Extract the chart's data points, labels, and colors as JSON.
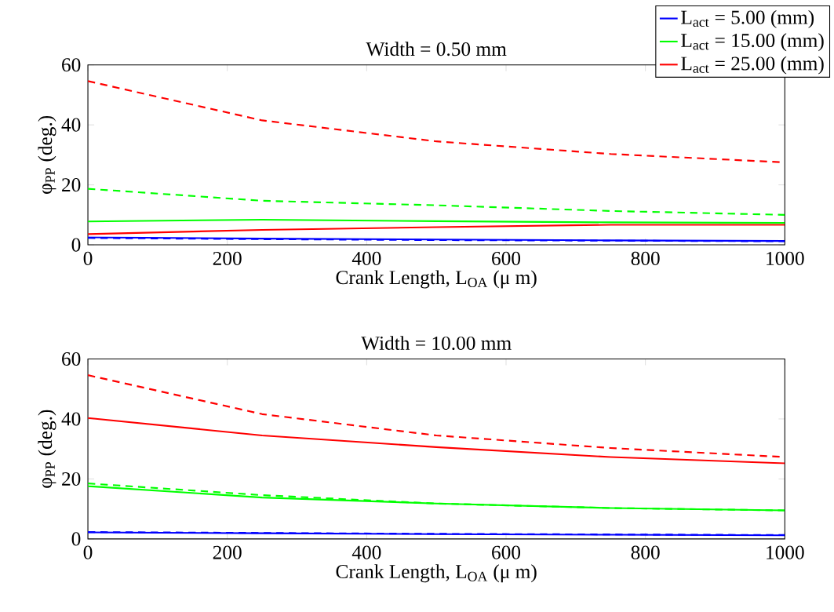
{
  "chart_data": [
    {
      "type": "line",
      "title": "Width = 0.50 mm",
      "xlabel": "Crank Length, L$_{OA}$ (μ m)",
      "ylabel": "φ$_{PP}$ (deg.)",
      "x": [
        0,
        250,
        500,
        750,
        1000
      ],
      "xlim": [
        0,
        1000
      ],
      "ylim": [
        0,
        60
      ],
      "xticks": [
        0,
        200,
        400,
        600,
        800,
        1000
      ],
      "yticks": [
        0,
        20,
        40,
        60
      ],
      "legend": "top right",
      "series": [
        {
          "name": "L$_{act}$ = 5.00 (mm)",
          "color": "#0000ff",
          "line_style": "solid",
          "values": [
            2.5,
            2.1,
            1.8,
            1.5,
            1.3
          ]
        },
        {
          "name": "L$_{act}$ = 15.00 (mm)",
          "color": "#00ff00",
          "line_style": "solid",
          "values": [
            7.8,
            8.4,
            7.9,
            7.5,
            7.3
          ]
        },
        {
          "name": "L$_{act}$ = 25.00 (mm)",
          "color": "#ff0000",
          "line_style": "solid",
          "values": [
            3.6,
            5.0,
            5.9,
            6.7,
            6.7
          ]
        },
        {
          "color": "#0000ff",
          "line_style": "dashed",
          "values": [
            2.3,
            1.9,
            1.6,
            1.4,
            1.2
          ]
        },
        {
          "color": "#00ff00",
          "line_style": "dashed",
          "values": [
            18.7,
            14.7,
            13.2,
            11.3,
            10.0
          ]
        },
        {
          "color": "#ff0000",
          "line_style": "dashed",
          "values": [
            54.6,
            41.5,
            34.5,
            30.3,
            27.5
          ]
        }
      ]
    },
    {
      "type": "line",
      "title": "Width = 10.00 mm",
      "xlabel": "Crank Length, L$_{OA}$ (μ m)",
      "ylabel": "φ$_{PP}$ (deg.)",
      "x": [
        0,
        250,
        500,
        750,
        1000
      ],
      "xlim": [
        0,
        1000
      ],
      "ylim": [
        0,
        60
      ],
      "xticks": [
        0,
        200,
        400,
        600,
        800,
        1000
      ],
      "yticks": [
        0,
        20,
        40,
        60
      ],
      "series": [
        {
          "color": "#0000ff",
          "line_style": "solid",
          "values": [
            2.2,
            1.9,
            1.6,
            1.4,
            1.2
          ]
        },
        {
          "color": "#00ff00",
          "line_style": "solid",
          "values": [
            17.6,
            13.8,
            11.8,
            10.3,
            9.5
          ]
        },
        {
          "color": "#ff0000",
          "line_style": "solid",
          "values": [
            40.3,
            34.5,
            30.6,
            27.3,
            25.2
          ]
        },
        {
          "color": "#0000ff",
          "line_style": "dashed",
          "values": [
            2.3,
            2.0,
            1.7,
            1.5,
            1.3
          ]
        },
        {
          "color": "#00ff00",
          "line_style": "dashed",
          "values": [
            18.5,
            14.6,
            11.8,
            10.3,
            9.5
          ]
        },
        {
          "color": "#ff0000",
          "line_style": "dashed",
          "values": [
            54.6,
            41.6,
            34.5,
            30.3,
            27.3
          ]
        }
      ]
    }
  ]
}
